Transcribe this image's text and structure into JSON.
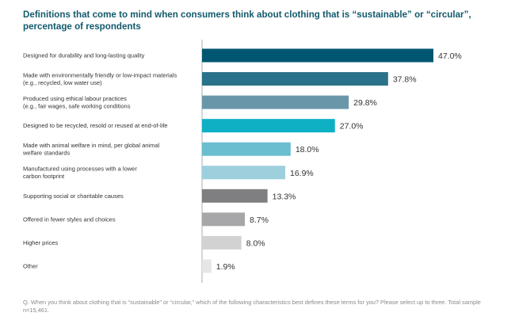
{
  "chart_data": {
    "type": "bar",
    "orientation": "horizontal",
    "title": "Definitions that come to mind when consumers think about clothing that is “sustainable” or “circular”, percentage of respondents",
    "categories": [
      [
        "Designed for durability and long-lasting quality"
      ],
      [
        "Made with environmentally friendly or low-impact materials",
        "(e.g., recycled, low water use)"
      ],
      [
        "Produced using ethical labour practices",
        "(e.g., fair wages, safe working conditions"
      ],
      [
        "Designed to be recycled, resold or reused at end-of-life"
      ],
      [
        "Made with animal welfare in mind, per global animal",
        "welfare standards"
      ],
      [
        "Manufactured using processes with a lower",
        "carbon footprint"
      ],
      [
        "Supporting social or charitable causes"
      ],
      [
        "Offered in fewer styles and choices"
      ],
      [
        "Higher prices"
      ],
      [
        "Other"
      ]
    ],
    "values": [
      47.0,
      37.8,
      29.8,
      27.0,
      18.0,
      16.9,
      13.3,
      8.7,
      8.0,
      1.9
    ],
    "value_labels": [
      "47.0%",
      "37.8%",
      "29.8%",
      "27.0%",
      "18.0%",
      "16.9%",
      "13.3%",
      "8.7%",
      "8.0%",
      "1.9%"
    ],
    "colors": [
      "#005670",
      "#2a7289",
      "#6a96aa",
      "#0fb0c4",
      "#6bbdd0",
      "#9dcfdc",
      "#7f7f82",
      "#a7a7a9",
      "#d2d2d3",
      "#e6e6e7"
    ],
    "xlim": [
      0,
      50
    ],
    "xlabel": "",
    "ylabel": "",
    "grid": false,
    "legend": "none"
  },
  "footnote": "Q. When you think about clothing that is “sustainable” or “circular,” which of the following characteristics best defines these terms for you? Please select up to three. Total sample n=15,461."
}
